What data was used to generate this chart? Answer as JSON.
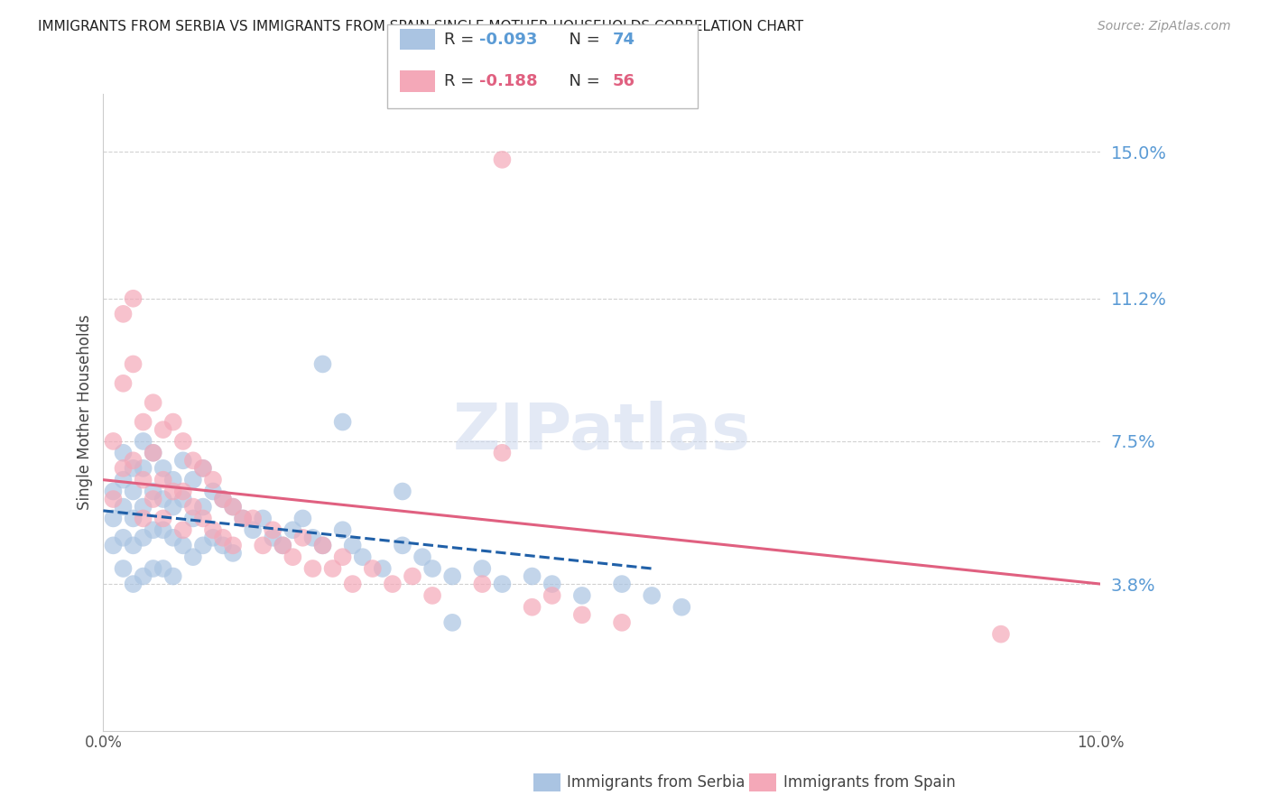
{
  "title": "IMMIGRANTS FROM SERBIA VS IMMIGRANTS FROM SPAIN SINGLE MOTHER HOUSEHOLDS CORRELATION CHART",
  "source": "Source: ZipAtlas.com",
  "ylabel": "Single Mother Households",
  "xlim": [
    0.0,
    0.1
  ],
  "ylim": [
    0.0,
    0.165
  ],
  "yticks": [
    0.038,
    0.075,
    0.112,
    0.15
  ],
  "ytick_labels": [
    "3.8%",
    "7.5%",
    "11.2%",
    "15.0%"
  ],
  "xticks": [
    0.0,
    0.02,
    0.04,
    0.06,
    0.08,
    0.1
  ],
  "xtick_labels": [
    "0.0%",
    "",
    "",
    "",
    "",
    "10.0%"
  ],
  "serbia_R": -0.093,
  "serbia_N": 74,
  "spain_R": -0.188,
  "spain_N": 56,
  "serbia_color": "#aac4e2",
  "spain_color": "#f4a8b8",
  "serbia_line_color": "#2060a8",
  "spain_line_color": "#e06080",
  "watermark": "ZIPatlas",
  "legend_serbia": "Immigrants from Serbia",
  "legend_spain": "Immigrants from Spain",
  "serbia_x": [
    0.001,
    0.001,
    0.001,
    0.002,
    0.002,
    0.002,
    0.002,
    0.002,
    0.003,
    0.003,
    0.003,
    0.003,
    0.003,
    0.004,
    0.004,
    0.004,
    0.004,
    0.004,
    0.005,
    0.005,
    0.005,
    0.005,
    0.006,
    0.006,
    0.006,
    0.006,
    0.007,
    0.007,
    0.007,
    0.007,
    0.008,
    0.008,
    0.008,
    0.009,
    0.009,
    0.009,
    0.01,
    0.01,
    0.01,
    0.011,
    0.011,
    0.012,
    0.012,
    0.013,
    0.013,
    0.014,
    0.015,
    0.016,
    0.017,
    0.018,
    0.019,
    0.02,
    0.021,
    0.022,
    0.024,
    0.025,
    0.026,
    0.028,
    0.03,
    0.032,
    0.033,
    0.035,
    0.038,
    0.04,
    0.043,
    0.045,
    0.048,
    0.052,
    0.055,
    0.058,
    0.022,
    0.024,
    0.03,
    0.035
  ],
  "serbia_y": [
    0.062,
    0.055,
    0.048,
    0.072,
    0.065,
    0.058,
    0.05,
    0.042,
    0.068,
    0.062,
    0.055,
    0.048,
    0.038,
    0.075,
    0.068,
    0.058,
    0.05,
    0.04,
    0.072,
    0.062,
    0.052,
    0.042,
    0.068,
    0.06,
    0.052,
    0.042,
    0.065,
    0.058,
    0.05,
    0.04,
    0.07,
    0.06,
    0.048,
    0.065,
    0.055,
    0.045,
    0.068,
    0.058,
    0.048,
    0.062,
    0.05,
    0.06,
    0.048,
    0.058,
    0.046,
    0.055,
    0.052,
    0.055,
    0.05,
    0.048,
    0.052,
    0.055,
    0.05,
    0.048,
    0.052,
    0.048,
    0.045,
    0.042,
    0.048,
    0.045,
    0.042,
    0.04,
    0.042,
    0.038,
    0.04,
    0.038,
    0.035,
    0.038,
    0.035,
    0.032,
    0.095,
    0.08,
    0.062,
    0.028
  ],
  "spain_x": [
    0.001,
    0.001,
    0.002,
    0.002,
    0.002,
    0.003,
    0.003,
    0.003,
    0.004,
    0.004,
    0.004,
    0.005,
    0.005,
    0.005,
    0.006,
    0.006,
    0.006,
    0.007,
    0.007,
    0.008,
    0.008,
    0.008,
    0.009,
    0.009,
    0.01,
    0.01,
    0.011,
    0.011,
    0.012,
    0.012,
    0.013,
    0.013,
    0.014,
    0.015,
    0.016,
    0.017,
    0.018,
    0.019,
    0.02,
    0.021,
    0.022,
    0.023,
    0.024,
    0.025,
    0.027,
    0.029,
    0.031,
    0.033,
    0.038,
    0.04,
    0.043,
    0.045,
    0.048,
    0.052,
    0.09,
    0.04
  ],
  "spain_y": [
    0.075,
    0.06,
    0.108,
    0.09,
    0.068,
    0.112,
    0.095,
    0.07,
    0.08,
    0.065,
    0.055,
    0.085,
    0.072,
    0.06,
    0.078,
    0.065,
    0.055,
    0.08,
    0.062,
    0.075,
    0.062,
    0.052,
    0.07,
    0.058,
    0.068,
    0.055,
    0.065,
    0.052,
    0.06,
    0.05,
    0.058,
    0.048,
    0.055,
    0.055,
    0.048,
    0.052,
    0.048,
    0.045,
    0.05,
    0.042,
    0.048,
    0.042,
    0.045,
    0.038,
    0.042,
    0.038,
    0.04,
    0.035,
    0.038,
    0.072,
    0.032,
    0.035,
    0.03,
    0.028,
    0.025,
    0.148
  ]
}
